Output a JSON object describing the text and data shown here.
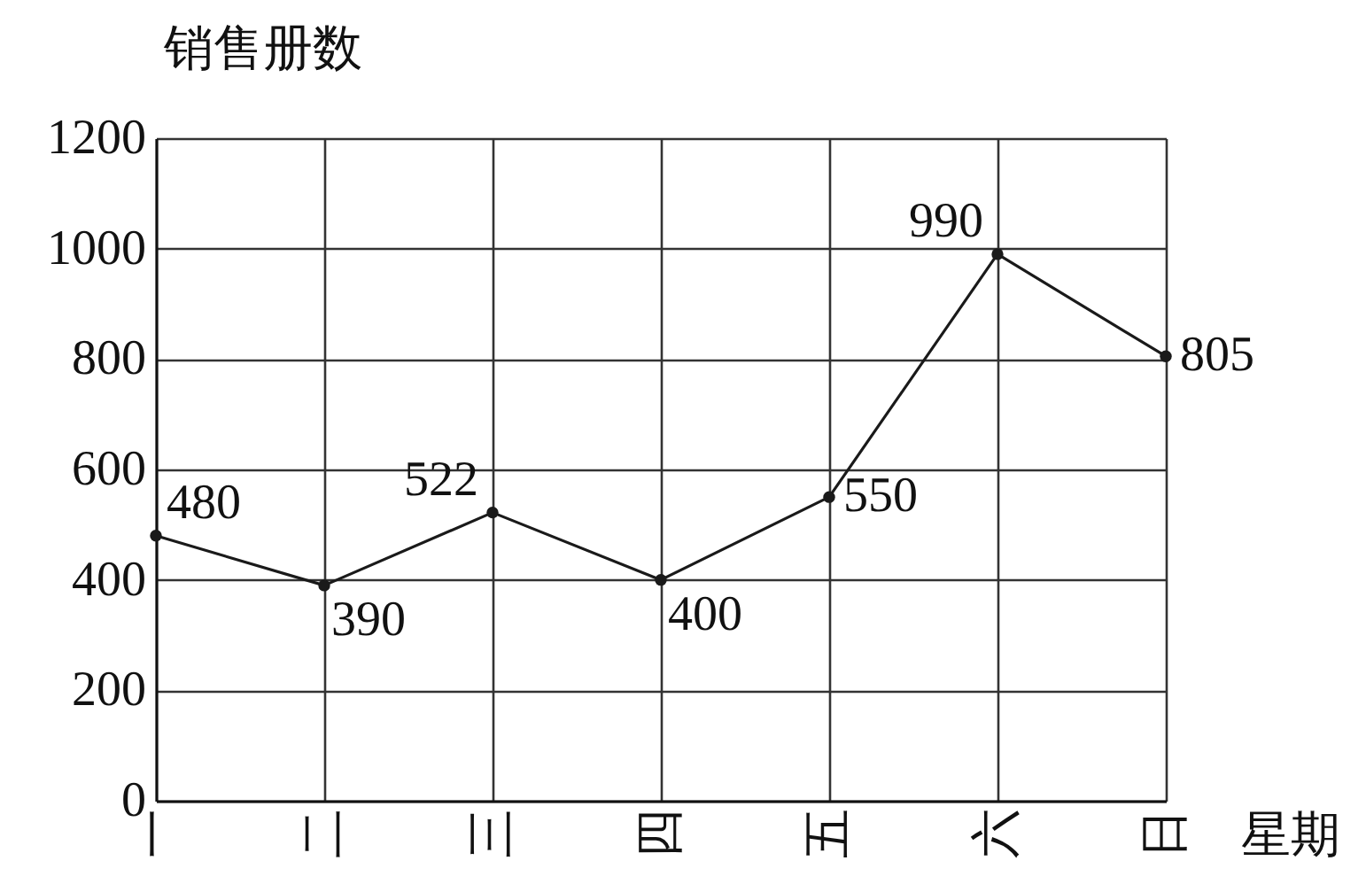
{
  "chart_data": {
    "type": "line",
    "xlabel": "星期",
    "ylabel": "销售册数",
    "categories": [
      "一",
      "二",
      "三",
      "四",
      "五",
      "六",
      "日"
    ],
    "series": [
      {
        "color": "#1a1a1a",
        "values": [
          480,
          390,
          522,
          400,
          550,
          990,
          805
        ]
      }
    ],
    "ylim": [
      0,
      1200
    ],
    "yticks": [
      0,
      200,
      400,
      600,
      800,
      1000,
      1200
    ],
    "grid": true,
    "marker": "circle",
    "line_style": "solid",
    "data_labels": true
  }
}
